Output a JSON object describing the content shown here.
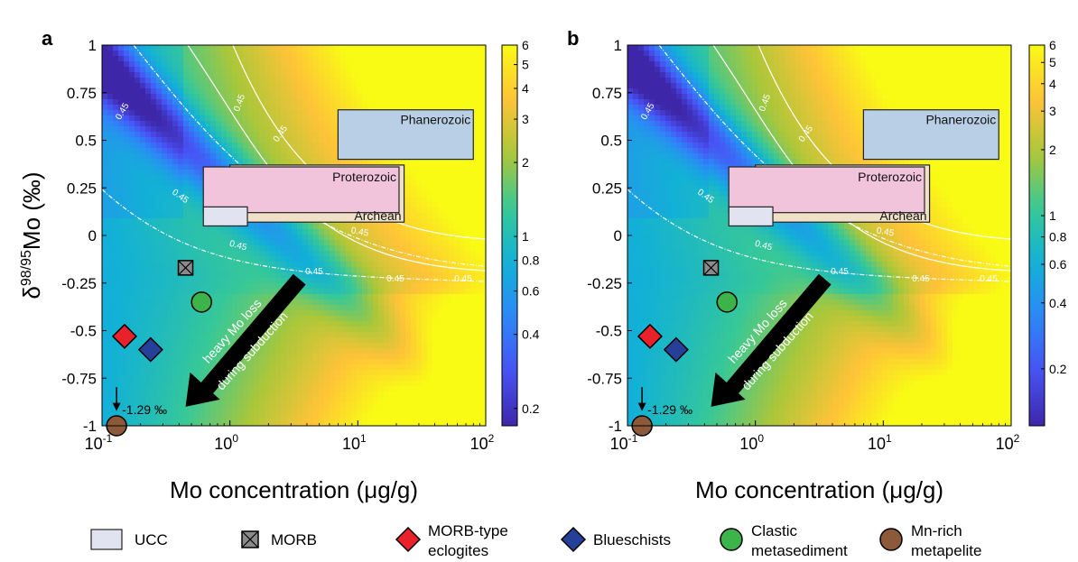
{
  "chart_data": [
    {
      "panel_label": "a",
      "type": "heatmap",
      "xlabel": "Mo concentration (μg/g)",
      "ylabel_main": "δ",
      "ylabel_sup": "98/95",
      "ylabel_tail": "Mo (‰)",
      "x_scale": "log",
      "xlim": [
        0.1,
        100
      ],
      "ylim": [
        -1,
        1
      ],
      "x_ticks": [
        0.1,
        1,
        10,
        100
      ],
      "x_tick_labels": [
        {
          "base": "10",
          "exp": "-1"
        },
        {
          "base": "10",
          "exp": "0"
        },
        {
          "base": "10",
          "exp": "1"
        },
        {
          "base": "10",
          "exp": "2"
        }
      ],
      "y_ticks": [
        1,
        0.75,
        0.5,
        0.25,
        0,
        -0.25,
        -0.5,
        -0.75,
        -1
      ],
      "y_tick_labels": [
        "1",
        "0.75",
        "0.5",
        "0.25",
        "0",
        "-0.25",
        "-0.5",
        "-0.75",
        "-1"
      ],
      "colorbar": {
        "scale": "log",
        "range": [
          0.17,
          6
        ],
        "ticks": [
          6,
          5,
          4,
          3,
          2,
          1,
          0.8,
          0.6,
          0.4,
          0.2
        ],
        "tick_labels": [
          "6",
          "5",
          "4",
          "3",
          "2",
          "1",
          "0.8",
          "0.6",
          "0.4",
          "0.2"
        ]
      },
      "contour_label": "0.45",
      "fields": [
        {
          "name": "Phanerozoic",
          "x": [
            7,
            80
          ],
          "y": [
            0.4,
            0.66
          ],
          "fill": "#b9cfe6"
        },
        {
          "name": "Archean",
          "x": [
            1.0,
            23
          ],
          "y": [
            0.07,
            0.37
          ],
          "fill": "#f0e0c8"
        },
        {
          "name": "Proterozoic",
          "x": [
            0.62,
            21
          ],
          "y": [
            0.12,
            0.36
          ],
          "fill": "#f2c4dc"
        },
        {
          "name": "UCC",
          "x": [
            0.62,
            1.37
          ],
          "y": [
            0.05,
            0.15
          ],
          "fill": "#e2e3f1"
        }
      ],
      "samples": [
        {
          "name": "MORB",
          "x": 0.45,
          "y": -0.17
        },
        {
          "name": "Clastic metasediment",
          "x": 0.6,
          "y": -0.35
        },
        {
          "name": "MORB-type eclogites",
          "x": 0.15,
          "y": -0.53
        },
        {
          "name": "Blueschists",
          "x": 0.24,
          "y": -0.6
        },
        {
          "name": "Mn-rich metapelite",
          "x": 0.13,
          "y": -1.0
        }
      ],
      "arrow": {
        "text_line1": "heavy Mo loss",
        "text_line2": "during subduction",
        "from": [
          3.5,
          -0.23
        ],
        "to": [
          0.45,
          -0.9
        ]
      },
      "annotation": {
        "text": "-1.29 ‰",
        "x": 0.13,
        "y": -0.92
      }
    },
    {
      "panel_label": "b",
      "type": "heatmap",
      "xlabel": "Mo concentration (μg/g)",
      "ylabel_main": "",
      "ylabel_sup": "",
      "ylabel_tail": "",
      "x_scale": "log",
      "xlim": [
        0.1,
        100
      ],
      "ylim": [
        -1,
        1
      ],
      "x_ticks": [
        0.1,
        1,
        10,
        100
      ],
      "x_tick_labels": [
        {
          "base": "10",
          "exp": "-1"
        },
        {
          "base": "10",
          "exp": "0"
        },
        {
          "base": "10",
          "exp": "1"
        },
        {
          "base": "10",
          "exp": "2"
        }
      ],
      "y_ticks": [
        1,
        0.75,
        0.5,
        0.25,
        0,
        -0.25,
        -0.5,
        -0.75,
        -1
      ],
      "y_tick_labels": [
        "1",
        "0.75",
        "0.5",
        "0.25",
        "0",
        "-0.25",
        "-0.5",
        "-0.75",
        "-1"
      ],
      "colorbar": {
        "scale": "log",
        "range": [
          0.11,
          6
        ],
        "ticks": [
          6,
          5,
          4,
          3,
          2,
          1,
          0.8,
          0.6,
          0.4,
          0.2
        ],
        "tick_labels": [
          "6",
          "5",
          "4",
          "3",
          "2",
          "1",
          "0.8",
          "0.6",
          "0.4",
          "0.2"
        ]
      },
      "contour_label": "0.45",
      "fields": [
        {
          "name": "Phanerozoic",
          "x": [
            7,
            80
          ],
          "y": [
            0.4,
            0.66
          ],
          "fill": "#b9cfe6"
        },
        {
          "name": "Archean",
          "x": [
            1.0,
            23
          ],
          "y": [
            0.07,
            0.37
          ],
          "fill": "#f0e0c8"
        },
        {
          "name": "Proterozoic",
          "x": [
            0.62,
            21
          ],
          "y": [
            0.12,
            0.36
          ],
          "fill": "#f2c4dc"
        },
        {
          "name": "UCC",
          "x": [
            0.62,
            1.37
          ],
          "y": [
            0.05,
            0.15
          ],
          "fill": "#e2e3f1"
        }
      ],
      "samples": [
        {
          "name": "MORB",
          "x": 0.45,
          "y": -0.17
        },
        {
          "name": "Clastic metasediment",
          "x": 0.6,
          "y": -0.35
        },
        {
          "name": "MORB-type eclogites",
          "x": 0.15,
          "y": -0.53
        },
        {
          "name": "Blueschists",
          "x": 0.24,
          "y": -0.6
        },
        {
          "name": "Mn-rich metapelite",
          "x": 0.13,
          "y": -1.0
        }
      ],
      "arrow": {
        "text_line1": "heavy Mo loss",
        "text_line2": "during subduction",
        "from": [
          3.5,
          -0.23
        ],
        "to": [
          0.45,
          -0.9
        ]
      },
      "annotation": {
        "text": "-1.29 ‰",
        "x": 0.13,
        "y": -0.92
      }
    }
  ],
  "legend": {
    "items": [
      {
        "key": "ucc",
        "label1": "UCC",
        "label2": ""
      },
      {
        "key": "morb",
        "label1": "MORB",
        "label2": ""
      },
      {
        "key": "eclogite",
        "label1": "MORB-type",
        "label2": "eclogites"
      },
      {
        "key": "blueschist",
        "label1": "Blueschists",
        "label2": ""
      },
      {
        "key": "clastic",
        "label1": "Clastic",
        "label2": "metasediment"
      },
      {
        "key": "mnrich",
        "label1": "Mn-rich",
        "label2": "metapelite"
      }
    ]
  },
  "colors": {
    "eclogite": "#e8212a",
    "blueschist": "#26409a",
    "clastic": "#3cb44a",
    "mnrich": "#8c5a3a",
    "morb": "#8a8a8a",
    "ucc": "#e2e3f1"
  }
}
